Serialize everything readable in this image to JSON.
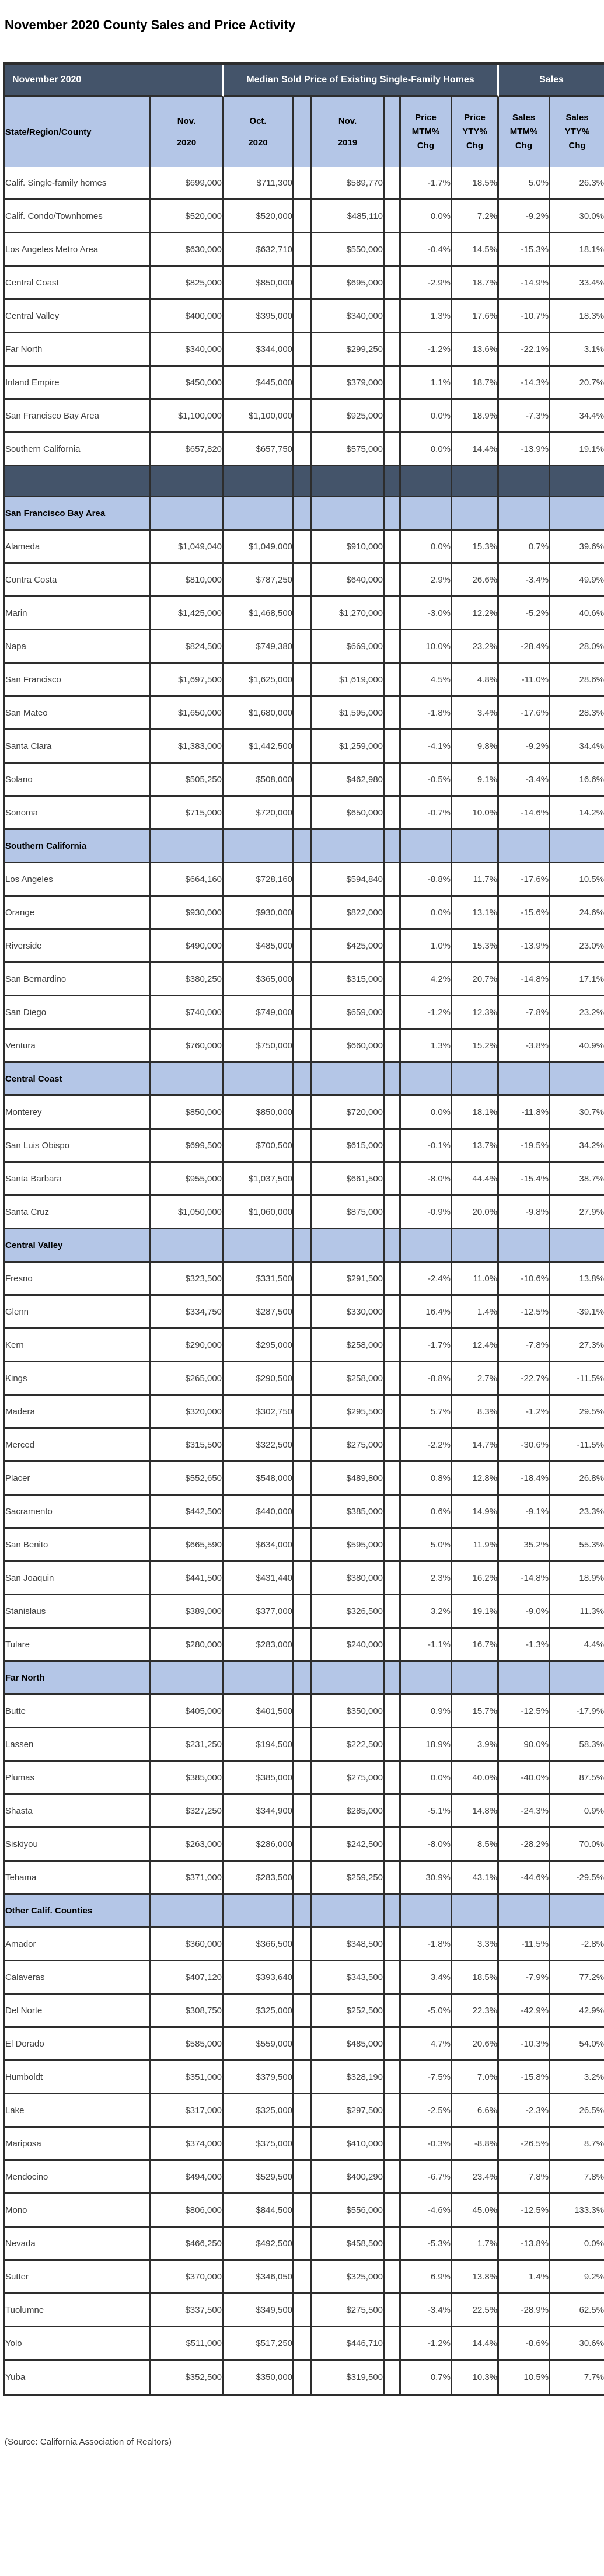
{
  "title": "November 2020 County Sales and Price Activity",
  "source_note": "(Source: California Association of Realtors)",
  "colors": {
    "header_navy": "#44546A",
    "section_blue": "#B4C6E7",
    "grid_border": "#2D2D2D"
  },
  "table": {
    "top_header": {
      "period": "November 2020",
      "price_group": "Median Sold Price of Existing Single-Family Homes",
      "sales_group": "Sales"
    },
    "columns": {
      "region": "State/Region/County",
      "nov2020": "Nov.\n2020",
      "oct2020": "Oct.\n2020",
      "nov2019": "Nov.\n2019",
      "price_mtm": "Price\nMTM%\nChg",
      "price_yty": "Price\nYTY%\nChg",
      "sales_mtm": "Sales\nMTM%\nChg",
      "sales_yty": "Sales\nYTY%\nChg"
    },
    "sections": [
      {
        "type": "rows",
        "header": null,
        "rows": [
          {
            "name": "Calif. Single-family homes",
            "nov2020": "$699,000",
            "oct2020": "$711,300",
            "nov2019": "$589,770",
            "price_mtm": "-1.7%",
            "price_yty": "18.5%",
            "sales_mtm": "5.0%",
            "sales_yty": "26.3%"
          },
          {
            "name": "Calif. Condo/Townhomes",
            "nov2020": "$520,000",
            "oct2020": "$520,000",
            "nov2019": "$485,110",
            "price_mtm": "0.0%",
            "price_yty": "7.2%",
            "sales_mtm": "-9.2%",
            "sales_yty": "30.0%"
          },
          {
            "name": "Los Angeles Metro Area",
            "nov2020": "$630,000",
            "oct2020": "$632,710",
            "nov2019": "$550,000",
            "price_mtm": "-0.4%",
            "price_yty": "14.5%",
            "sales_mtm": "-15.3%",
            "sales_yty": "18.1%"
          },
          {
            "name": "Central Coast",
            "nov2020": "$825,000",
            "oct2020": "$850,000",
            "nov2019": "$695,000",
            "price_mtm": "-2.9%",
            "price_yty": "18.7%",
            "sales_mtm": "-14.9%",
            "sales_yty": "33.4%"
          },
          {
            "name": "Central Valley",
            "nov2020": "$400,000",
            "oct2020": "$395,000",
            "nov2019": "$340,000",
            "price_mtm": "1.3%",
            "price_yty": "17.6%",
            "sales_mtm": "-10.7%",
            "sales_yty": "18.3%"
          },
          {
            "name": "Far North",
            "nov2020": "$340,000",
            "oct2020": "$344,000",
            "nov2019": "$299,250",
            "price_mtm": "-1.2%",
            "price_yty": "13.6%",
            "sales_mtm": "-22.1%",
            "sales_yty": "3.1%"
          },
          {
            "name": "Inland Empire",
            "nov2020": "$450,000",
            "oct2020": "$445,000",
            "nov2019": "$379,000",
            "price_mtm": "1.1%",
            "price_yty": "18.7%",
            "sales_mtm": "-14.3%",
            "sales_yty": "20.7%"
          },
          {
            "name": "San Francisco Bay Area",
            "nov2020": "$1,100,000",
            "oct2020": "$1,100,000",
            "nov2019": "$925,000",
            "price_mtm": "0.0%",
            "price_yty": "18.9%",
            "sales_mtm": "-7.3%",
            "sales_yty": "34.4%"
          },
          {
            "name": "Southern California",
            "nov2020": "$657,820",
            "oct2020": "$657,750",
            "nov2019": "$575,000",
            "price_mtm": "0.0%",
            "price_yty": "14.4%",
            "sales_mtm": "-13.9%",
            "sales_yty": "19.1%"
          }
        ]
      },
      {
        "type": "separator",
        "header": null,
        "rows": []
      },
      {
        "type": "section",
        "header": "San Francisco Bay Area",
        "rows": [
          {
            "name": "Alameda",
            "nov2020": "$1,049,040",
            "oct2020": "$1,049,000",
            "nov2019": "$910,000",
            "price_mtm": "0.0%",
            "price_yty": "15.3%",
            "sales_mtm": "0.7%",
            "sales_yty": "39.6%"
          },
          {
            "name": "Contra Costa",
            "nov2020": "$810,000",
            "oct2020": "$787,250",
            "nov2019": "$640,000",
            "price_mtm": "2.9%",
            "price_yty": "26.6%",
            "sales_mtm": "-3.4%",
            "sales_yty": "49.9%"
          },
          {
            "name": "Marin",
            "nov2020": "$1,425,000",
            "oct2020": "$1,468,500",
            "nov2019": "$1,270,000",
            "price_mtm": "-3.0%",
            "price_yty": "12.2%",
            "sales_mtm": "-5.2%",
            "sales_yty": "40.6%"
          },
          {
            "name": "Napa",
            "nov2020": "$824,500",
            "oct2020": "$749,380",
            "nov2019": "$669,000",
            "price_mtm": "10.0%",
            "price_yty": "23.2%",
            "sales_mtm": "-28.4%",
            "sales_yty": "28.0%"
          },
          {
            "name": "San Francisco",
            "nov2020": "$1,697,500",
            "oct2020": "$1,625,000",
            "nov2019": "$1,619,000",
            "price_mtm": "4.5%",
            "price_yty": "4.8%",
            "sales_mtm": "-11.0%",
            "sales_yty": "28.6%"
          },
          {
            "name": "San Mateo",
            "nov2020": "$1,650,000",
            "oct2020": "$1,680,000",
            "nov2019": "$1,595,000",
            "price_mtm": "-1.8%",
            "price_yty": "3.4%",
            "sales_mtm": "-17.6%",
            "sales_yty": "28.3%"
          },
          {
            "name": "Santa Clara",
            "nov2020": "$1,383,000",
            "oct2020": "$1,442,500",
            "nov2019": "$1,259,000",
            "price_mtm": "-4.1%",
            "price_yty": "9.8%",
            "sales_mtm": "-9.2%",
            "sales_yty": "34.4%"
          },
          {
            "name": "Solano",
            "nov2020": "$505,250",
            "oct2020": "$508,000",
            "nov2019": "$462,980",
            "price_mtm": "-0.5%",
            "price_yty": "9.1%",
            "sales_mtm": "-3.4%",
            "sales_yty": "16.6%"
          },
          {
            "name": "Sonoma",
            "nov2020": "$715,000",
            "oct2020": "$720,000",
            "nov2019": "$650,000",
            "price_mtm": "-0.7%",
            "price_yty": "10.0%",
            "sales_mtm": "-14.6%",
            "sales_yty": "14.2%"
          }
        ]
      },
      {
        "type": "section",
        "header": "Southern California",
        "rows": [
          {
            "name": "Los Angeles",
            "nov2020": "$664,160",
            "oct2020": "$728,160",
            "nov2019": "$594,840",
            "price_mtm": "-8.8%",
            "price_yty": "11.7%",
            "sales_mtm": "-17.6%",
            "sales_yty": "10.5%"
          },
          {
            "name": "Orange",
            "nov2020": "$930,000",
            "oct2020": "$930,000",
            "nov2019": "$822,000",
            "price_mtm": "0.0%",
            "price_yty": "13.1%",
            "sales_mtm": "-15.6%",
            "sales_yty": "24.6%"
          },
          {
            "name": "Riverside",
            "nov2020": "$490,000",
            "oct2020": "$485,000",
            "nov2019": "$425,000",
            "price_mtm": "1.0%",
            "price_yty": "15.3%",
            "sales_mtm": "-13.9%",
            "sales_yty": "23.0%"
          },
          {
            "name": "San Bernardino",
            "nov2020": "$380,250",
            "oct2020": "$365,000",
            "nov2019": "$315,000",
            "price_mtm": "4.2%",
            "price_yty": "20.7%",
            "sales_mtm": "-14.8%",
            "sales_yty": "17.1%"
          },
          {
            "name": "San Diego",
            "nov2020": "$740,000",
            "oct2020": "$749,000",
            "nov2019": "$659,000",
            "price_mtm": "-1.2%",
            "price_yty": "12.3%",
            "sales_mtm": "-7.8%",
            "sales_yty": "23.2%"
          },
          {
            "name": "Ventura",
            "nov2020": "$760,000",
            "oct2020": "$750,000",
            "nov2019": "$660,000",
            "price_mtm": "1.3%",
            "price_yty": "15.2%",
            "sales_mtm": "-3.8%",
            "sales_yty": "40.9%"
          }
        ]
      },
      {
        "type": "section",
        "header": "Central Coast",
        "rows": [
          {
            "name": "Monterey",
            "nov2020": "$850,000",
            "oct2020": "$850,000",
            "nov2019": "$720,000",
            "price_mtm": "0.0%",
            "price_yty": "18.1%",
            "sales_mtm": "-11.8%",
            "sales_yty": "30.7%"
          },
          {
            "name": "San Luis Obispo",
            "nov2020": "$699,500",
            "oct2020": "$700,500",
            "nov2019": "$615,000",
            "price_mtm": "-0.1%",
            "price_yty": "13.7%",
            "sales_mtm": "-19.5%",
            "sales_yty": "34.2%"
          },
          {
            "name": "Santa Barbara",
            "nov2020": "$955,000",
            "oct2020": "$1,037,500",
            "nov2019": "$661,500",
            "price_mtm": "-8.0%",
            "price_yty": "44.4%",
            "sales_mtm": "-15.4%",
            "sales_yty": "38.7%"
          },
          {
            "name": "Santa Cruz",
            "nov2020": "$1,050,000",
            "oct2020": "$1,060,000",
            "nov2019": "$875,000",
            "price_mtm": "-0.9%",
            "price_yty": "20.0%",
            "sales_mtm": "-9.8%",
            "sales_yty": "27.9%"
          }
        ]
      },
      {
        "type": "section",
        "header": "Central Valley",
        "rows": [
          {
            "name": "Fresno",
            "nov2020": "$323,500",
            "oct2020": "$331,500",
            "nov2019": "$291,500",
            "price_mtm": "-2.4%",
            "price_yty": "11.0%",
            "sales_mtm": "-10.6%",
            "sales_yty": "13.8%"
          },
          {
            "name": "Glenn",
            "nov2020": "$334,750",
            "oct2020": "$287,500",
            "nov2019": "$330,000",
            "price_mtm": "16.4%",
            "price_yty": "1.4%",
            "sales_mtm": "-12.5%",
            "sales_yty": "-39.1%"
          },
          {
            "name": "Kern",
            "nov2020": "$290,000",
            "oct2020": "$295,000",
            "nov2019": "$258,000",
            "price_mtm": "-1.7%",
            "price_yty": "12.4%",
            "sales_mtm": "-7.8%",
            "sales_yty": "27.3%"
          },
          {
            "name": "Kings",
            "nov2020": "$265,000",
            "oct2020": "$290,500",
            "nov2019": "$258,000",
            "price_mtm": "-8.8%",
            "price_yty": "2.7%",
            "sales_mtm": "-22.7%",
            "sales_yty": "-11.5%"
          },
          {
            "name": "Madera",
            "nov2020": "$320,000",
            "oct2020": "$302,750",
            "nov2019": "$295,500",
            "price_mtm": "5.7%",
            "price_yty": "8.3%",
            "sales_mtm": "-1.2%",
            "sales_yty": "29.5%"
          },
          {
            "name": "Merced",
            "nov2020": "$315,500",
            "oct2020": "$322,500",
            "nov2019": "$275,000",
            "price_mtm": "-2.2%",
            "price_yty": "14.7%",
            "sales_mtm": "-30.6%",
            "sales_yty": "-11.5%"
          },
          {
            "name": "Placer",
            "nov2020": "$552,650",
            "oct2020": "$548,000",
            "nov2019": "$489,800",
            "price_mtm": "0.8%",
            "price_yty": "12.8%",
            "sales_mtm": "-18.4%",
            "sales_yty": "26.8%"
          },
          {
            "name": "Sacramento",
            "nov2020": "$442,500",
            "oct2020": "$440,000",
            "nov2019": "$385,000",
            "price_mtm": "0.6%",
            "price_yty": "14.9%",
            "sales_mtm": "-9.1%",
            "sales_yty": "23.3%"
          },
          {
            "name": "San Benito",
            "nov2020": "$665,590",
            "oct2020": "$634,000",
            "nov2019": "$595,000",
            "price_mtm": "5.0%",
            "price_yty": "11.9%",
            "sales_mtm": "35.2%",
            "sales_yty": "55.3%"
          },
          {
            "name": "San Joaquin",
            "nov2020": "$441,500",
            "oct2020": "$431,440",
            "nov2019": "$380,000",
            "price_mtm": "2.3%",
            "price_yty": "16.2%",
            "sales_mtm": "-14.8%",
            "sales_yty": "18.9%"
          },
          {
            "name": "Stanislaus",
            "nov2020": "$389,000",
            "oct2020": "$377,000",
            "nov2019": "$326,500",
            "price_mtm": "3.2%",
            "price_yty": "19.1%",
            "sales_mtm": "-9.0%",
            "sales_yty": "11.3%"
          },
          {
            "name": "Tulare",
            "nov2020": "$280,000",
            "oct2020": "$283,000",
            "nov2019": "$240,000",
            "price_mtm": "-1.1%",
            "price_yty": "16.7%",
            "sales_mtm": "-1.3%",
            "sales_yty": "4.4%"
          }
        ]
      },
      {
        "type": "section",
        "header": "Far North",
        "rows": [
          {
            "name": "Butte",
            "nov2020": "$405,000",
            "oct2020": "$401,500",
            "nov2019": "$350,000",
            "price_mtm": "0.9%",
            "price_yty": "15.7%",
            "sales_mtm": "-12.5%",
            "sales_yty": "-17.9%"
          },
          {
            "name": "Lassen",
            "nov2020": "$231,250",
            "oct2020": "$194,500",
            "nov2019": "$222,500",
            "price_mtm": "18.9%",
            "price_yty": "3.9%",
            "sales_mtm": "90.0%",
            "sales_yty": "58.3%"
          },
          {
            "name": "Plumas",
            "nov2020": "$385,000",
            "oct2020": "$385,000",
            "nov2019": "$275,000",
            "price_mtm": "0.0%",
            "price_yty": "40.0%",
            "sales_mtm": "-40.0%",
            "sales_yty": "87.5%"
          },
          {
            "name": "Shasta",
            "nov2020": "$327,250",
            "oct2020": "$344,900",
            "nov2019": "$285,000",
            "price_mtm": "-5.1%",
            "price_yty": "14.8%",
            "sales_mtm": "-24.3%",
            "sales_yty": "0.9%"
          },
          {
            "name": "Siskiyou",
            "nov2020": "$263,000",
            "oct2020": "$286,000",
            "nov2019": "$242,500",
            "price_mtm": "-8.0%",
            "price_yty": "8.5%",
            "sales_mtm": "-28.2%",
            "sales_yty": "70.0%"
          },
          {
            "name": "Tehama",
            "nov2020": "$371,000",
            "oct2020": "$283,500",
            "nov2019": "$259,250",
            "price_mtm": "30.9%",
            "price_yty": "43.1%",
            "sales_mtm": "-44.6%",
            "sales_yty": "-29.5%"
          }
        ]
      },
      {
        "type": "section",
        "header": "Other Calif. Counties",
        "rows": [
          {
            "name": "Amador",
            "nov2020": "$360,000",
            "oct2020": "$366,500",
            "nov2019": "$348,500",
            "price_mtm": "-1.8%",
            "price_yty": "3.3%",
            "sales_mtm": "-11.5%",
            "sales_yty": "-2.8%"
          },
          {
            "name": "Calaveras",
            "nov2020": "$407,120",
            "oct2020": "$393,640",
            "nov2019": "$343,500",
            "price_mtm": "3.4%",
            "price_yty": "18.5%",
            "sales_mtm": "-7.9%",
            "sales_yty": "77.2%"
          },
          {
            "name": "Del Norte",
            "nov2020": "$308,750",
            "oct2020": "$325,000",
            "nov2019": "$252,500",
            "price_mtm": "-5.0%",
            "price_yty": "22.3%",
            "sales_mtm": "-42.9%",
            "sales_yty": "42.9%"
          },
          {
            "name": "El Dorado",
            "nov2020": "$585,000",
            "oct2020": "$559,000",
            "nov2019": "$485,000",
            "price_mtm": "4.7%",
            "price_yty": "20.6%",
            "sales_mtm": "-10.3%",
            "sales_yty": "54.0%"
          },
          {
            "name": "Humboldt",
            "nov2020": "$351,000",
            "oct2020": "$379,500",
            "nov2019": "$328,190",
            "price_mtm": "-7.5%",
            "price_yty": "7.0%",
            "sales_mtm": "-15.8%",
            "sales_yty": "3.2%"
          },
          {
            "name": "Lake",
            "nov2020": "$317,000",
            "oct2020": "$325,000",
            "nov2019": "$297,500",
            "price_mtm": "-2.5%",
            "price_yty": "6.6%",
            "sales_mtm": "-2.3%",
            "sales_yty": "26.5%"
          },
          {
            "name": "Mariposa",
            "nov2020": "$374,000",
            "oct2020": "$375,000",
            "nov2019": "$410,000",
            "price_mtm": "-0.3%",
            "price_yty": "-8.8%",
            "sales_mtm": "-26.5%",
            "sales_yty": "8.7%"
          },
          {
            "name": "Mendocino",
            "nov2020": "$494,000",
            "oct2020": "$529,500",
            "nov2019": "$400,290",
            "price_mtm": "-6.7%",
            "price_yty": "23.4%",
            "sales_mtm": "7.8%",
            "sales_yty": "7.8%"
          },
          {
            "name": "Mono",
            "nov2020": "$806,000",
            "oct2020": "$844,500",
            "nov2019": "$556,000",
            "price_mtm": "-4.6%",
            "price_yty": "45.0%",
            "sales_mtm": "-12.5%",
            "sales_yty": "133.3%"
          },
          {
            "name": "Nevada",
            "nov2020": "$466,250",
            "oct2020": "$492,500",
            "nov2019": "$458,500",
            "price_mtm": "-5.3%",
            "price_yty": "1.7%",
            "sales_mtm": "-13.8%",
            "sales_yty": "0.0%"
          },
          {
            "name": "Sutter",
            "nov2020": "$370,000",
            "oct2020": "$346,050",
            "nov2019": "$325,000",
            "price_mtm": "6.9%",
            "price_yty": "13.8%",
            "sales_mtm": "1.4%",
            "sales_yty": "9.2%"
          },
          {
            "name": "Tuolumne",
            "nov2020": "$337,500",
            "oct2020": "$349,500",
            "nov2019": "$275,500",
            "price_mtm": "-3.4%",
            "price_yty": "22.5%",
            "sales_mtm": "-28.9%",
            "sales_yty": "62.5%"
          },
          {
            "name": "Yolo",
            "nov2020": "$511,000",
            "oct2020": "$517,250",
            "nov2019": "$446,710",
            "price_mtm": "-1.2%",
            "price_yty": "14.4%",
            "sales_mtm": "-8.6%",
            "sales_yty": "30.6%"
          },
          {
            "name": "Yuba",
            "nov2020": "$352,500",
            "oct2020": "$350,000",
            "nov2019": "$319,500",
            "price_mtm": "0.7%",
            "price_yty": "10.3%",
            "sales_mtm": "10.5%",
            "sales_yty": "7.7%"
          }
        ]
      }
    ]
  }
}
